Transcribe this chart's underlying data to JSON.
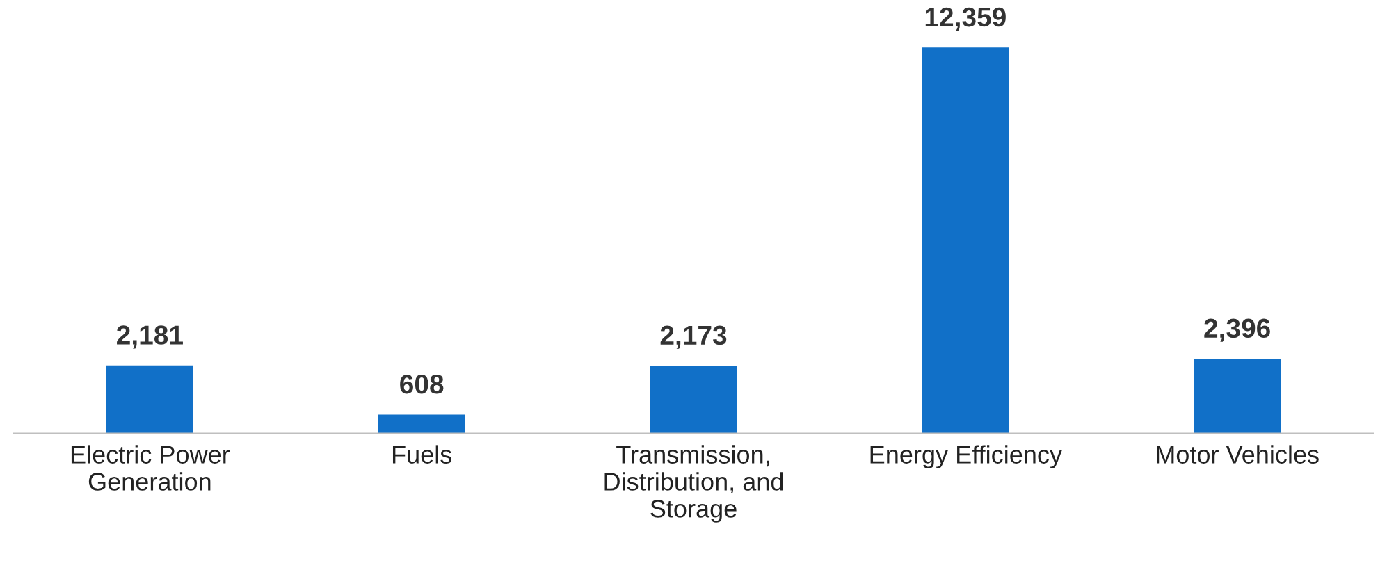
{
  "chart_data": {
    "type": "bar",
    "categories": [
      "Electric Power\nGeneration",
      "Fuels",
      "Transmission,\nDistribution, and\nStorage",
      "Energy Efficiency",
      "Motor Vehicles"
    ],
    "values": [
      2181,
      608,
      2173,
      12359,
      2396
    ],
    "value_labels": [
      "2,181",
      "608",
      "2,173",
      "12,359",
      "2,396"
    ],
    "color": "#1170c8",
    "grid": false,
    "legend": false,
    "tick_labels": "x"
  }
}
